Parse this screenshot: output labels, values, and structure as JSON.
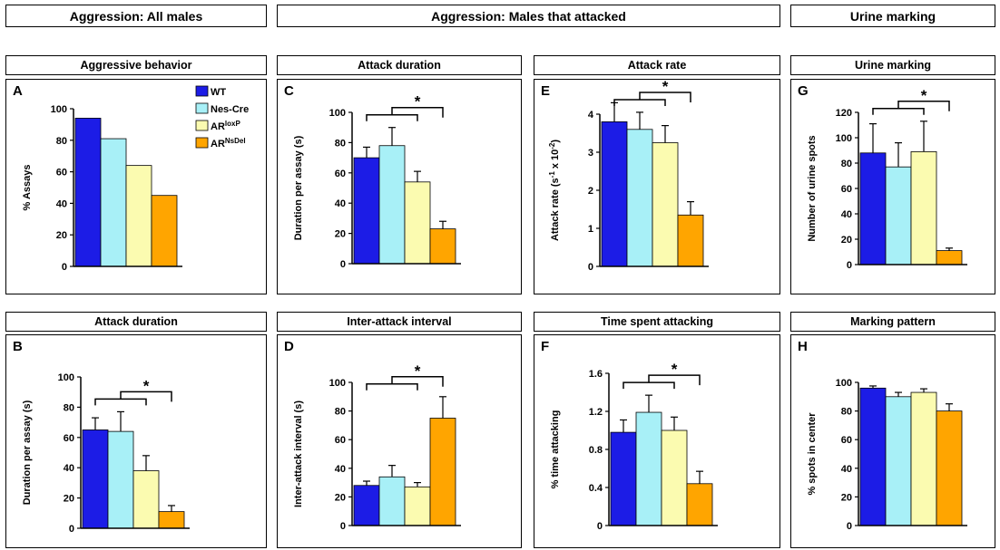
{
  "headers": {
    "group1": "Aggression: All males",
    "group2": "Aggression: Males that attacked",
    "group3": "Urine marking"
  },
  "panel_titles": {
    "A": "Aggressive behavior",
    "B": "Attack duration",
    "C": "Attack duration",
    "D": "Inter-attack interval",
    "E": "Attack rate",
    "F": "Time spent attacking",
    "G": "Urine marking",
    "H": "Marking pattern"
  },
  "legend": [
    {
      "name": "WT",
      "base": "WT",
      "sup": "",
      "color": "#1c1ce6"
    },
    {
      "name": "Nes-Cre",
      "base": "Nes-Cre",
      "sup": "",
      "color": "#a8f0f7"
    },
    {
      "name": "ARloxP",
      "base": "AR",
      "sup": "loxP",
      "color": "#fbfbb0"
    },
    {
      "name": "ARNsDel",
      "base": "AR",
      "sup": "NsDel",
      "color": "#ffa500"
    }
  ],
  "chart_data": [
    {
      "id": "A",
      "type": "bar",
      "ylabel": "% Assays",
      "ylim": [
        0,
        100
      ],
      "yticks": [
        "0",
        "20",
        "40",
        "60",
        "80",
        "100"
      ],
      "categories": [
        "WT",
        "Nes-Cre",
        "ARloxP",
        "ARNsDel"
      ],
      "values": [
        94,
        81,
        64,
        45
      ],
      "errors": [
        0,
        0,
        0,
        0
      ],
      "significance": false
    },
    {
      "id": "B",
      "type": "bar",
      "ylabel": "Duration per assay (s)",
      "ylim": [
        0,
        100
      ],
      "yticks": [
        "0",
        "20",
        "40",
        "60",
        "80",
        "100"
      ],
      "categories": [
        "WT",
        "Nes-Cre",
        "ARloxP",
        "ARNsDel"
      ],
      "values": [
        65,
        64,
        38,
        11
      ],
      "errors": [
        8,
        13,
        10,
        4
      ],
      "significance": true,
      "star": "*"
    },
    {
      "id": "C",
      "type": "bar",
      "ylabel": "Duration per assay (s)",
      "ylim": [
        0,
        100
      ],
      "yticks": [
        "0",
        "20",
        "40",
        "60",
        "80",
        "100"
      ],
      "categories": [
        "WT",
        "Nes-Cre",
        "ARloxP",
        "ARNsDel"
      ],
      "values": [
        70,
        78,
        54,
        23
      ],
      "errors": [
        7,
        12,
        7,
        5
      ],
      "significance": true,
      "star": "*"
    },
    {
      "id": "D",
      "type": "bar",
      "ylabel": "Inter-attack interval (s)",
      "ylim": [
        0,
        100
      ],
      "yticks": [
        "0",
        "20",
        "40",
        "60",
        "80",
        "100"
      ],
      "categories": [
        "WT",
        "Nes-Cre",
        "ARloxP",
        "ARNsDel"
      ],
      "values": [
        28,
        34,
        27,
        75
      ],
      "errors": [
        3,
        8,
        3,
        15
      ],
      "significance": true,
      "star": "*"
    },
    {
      "id": "E",
      "type": "bar",
      "ylabel": "Attack rate (s-1 x 10-2)",
      "ylabel_parts": [
        "Attack rate (s",
        "-1",
        " x 10",
        "-2",
        ")"
      ],
      "ylim": [
        0,
        4
      ],
      "yticks": [
        "0",
        "1",
        "2",
        "3",
        "4"
      ],
      "categories": [
        "WT",
        "Nes-Cre",
        "ARloxP",
        "ARNsDel"
      ],
      "values": [
        3.8,
        3.6,
        3.25,
        1.35
      ],
      "errors": [
        0.5,
        0.45,
        0.45,
        0.35
      ],
      "significance": true,
      "star": "*"
    },
    {
      "id": "F",
      "type": "bar",
      "ylabel": "% time attacking",
      "ylim": [
        0,
        1.6
      ],
      "yticks": [
        "0",
        "0.4",
        "0.8",
        "1.2",
        "1.6"
      ],
      "categories": [
        "WT",
        "Nes-Cre",
        "ARloxP",
        "ARNsDel"
      ],
      "values": [
        0.98,
        1.19,
        1.0,
        0.44
      ],
      "errors": [
        0.13,
        0.18,
        0.14,
        0.13
      ],
      "significance": true,
      "star": "*"
    },
    {
      "id": "G",
      "type": "bar",
      "ylabel": "Number of urine spots",
      "ylim": [
        0,
        120
      ],
      "yticks": [
        "0",
        "20",
        "40",
        "60",
        "80",
        "100",
        "120"
      ],
      "categories": [
        "WT",
        "Nes-Cre",
        "ARloxP",
        "ARNsDel"
      ],
      "values": [
        88,
        77,
        89,
        11
      ],
      "errors": [
        23,
        19,
        24,
        2
      ],
      "significance": true,
      "star": "*"
    },
    {
      "id": "H",
      "type": "bar",
      "ylabel": "% spots in center",
      "ylim": [
        0,
        100
      ],
      "yticks": [
        "0",
        "20",
        "40",
        "60",
        "80",
        "100"
      ],
      "categories": [
        "WT",
        "Nes-Cre",
        "ARloxP",
        "ARNsDel"
      ],
      "values": [
        96,
        90,
        93,
        80
      ],
      "errors": [
        1.5,
        3,
        2.5,
        5
      ],
      "significance": false
    }
  ]
}
